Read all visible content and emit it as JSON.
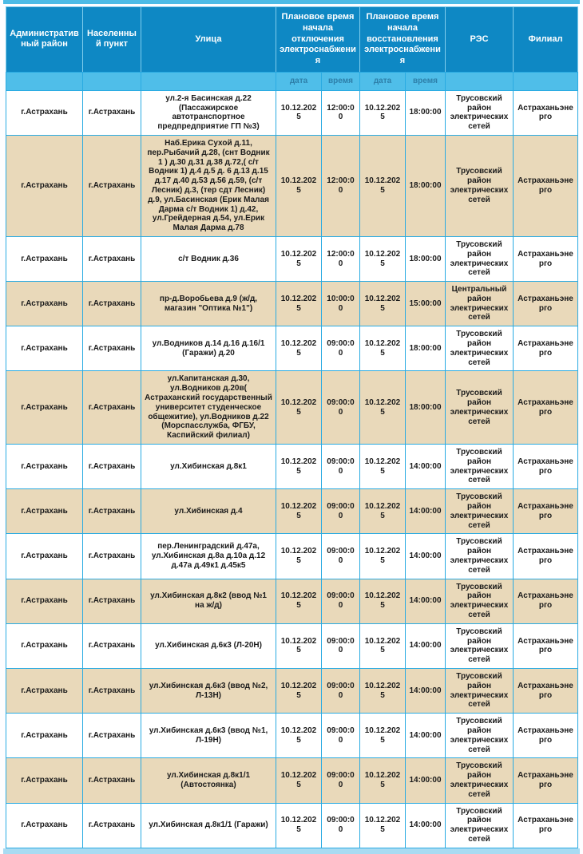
{
  "table": {
    "headers": {
      "admin_district": "Административный район",
      "settlement": "Населенный пункт",
      "street": "Улица",
      "outage_start_group": "Плановое время начала отключения электроснабжения",
      "restore_start_group": "Плановое время начала восстановления электроснабжения",
      "res": "РЭС",
      "branch": "Филиал",
      "sub_date_1": "дата",
      "sub_time_1": "время",
      "sub_date_2": "дата",
      "sub_time_2": "время"
    },
    "rows": [
      {
        "district": "г.Астрахань",
        "settlement": "г.Астрахань",
        "street": "ул.2-я Басинская д.22 (Пассажирское автотранспортное предпредприятие ГП №3)",
        "off_date": "10.12.2025",
        "off_time": "12:00:00",
        "on_date": "10.12.2025",
        "on_time": "18:00:00",
        "res": "Трусовский район электрических сетей",
        "branch": "Астраханьэнерго"
      },
      {
        "district": "г.Астрахань",
        "settlement": "г.Астрахань",
        "street": "Наб.Ерика Сухой д.11, пер.Рыбачий д.28, (снт Водник 1 ) д.30 д.31 д.38 д.72,( с/т Водник 1) д.4 д.5 д. 6 д.13 д.15 д.17 д.40 д.53 д.56 д.59, (с/т Лесник) д.3, (тер сдт Лесник) д.9, ул.Басинская (Ерик Малая Дарма с/т Водник 1) д.42, ул.Грейдерная д.54, ул.Ерик Малая Дарма д.78",
        "off_date": "10.12.2025",
        "off_time": "12:00:00",
        "on_date": "10.12.2025",
        "on_time": "18:00:00",
        "res": "Трусовский район электрических сетей",
        "branch": "Астраханьэнерго"
      },
      {
        "district": "г.Астрахань",
        "settlement": "г.Астрахань",
        "street": "с/т Водник д.36",
        "off_date": "10.12.2025",
        "off_time": "12:00:00",
        "on_date": "10.12.2025",
        "on_time": "18:00:00",
        "res": "Трусовский район электрических сетей",
        "branch": "Астраханьэнерго"
      },
      {
        "district": "г.Астрахань",
        "settlement": "г.Астрахань",
        "street": "пр-д.Воробьева д.9 (ж/д, магазин \"Оптика №1\")",
        "off_date": "10.12.2025",
        "off_time": "10:00:00",
        "on_date": "10.12.2025",
        "on_time": "15:00:00",
        "res": "Центральный район электрических сетей",
        "branch": "Астраханьэнерго"
      },
      {
        "district": "г.Астрахань",
        "settlement": "г.Астрахань",
        "street": "ул.Водников д.14 д.16 д.16/1 (Гаражи) д.20",
        "off_date": "10.12.2025",
        "off_time": "09:00:00",
        "on_date": "10.12.2025",
        "on_time": "18:00:00",
        "res": "Трусовский район электрических сетей",
        "branch": "Астраханьэнерго"
      },
      {
        "district": "г.Астрахань",
        "settlement": "г.Астрахань",
        "street": "ул.Капитанская д.30, ул.Водников д.20в( Астраханский государственный университет студенческое общежитие), ул.Водников д.22 (Морспасслужба, ФГБУ, Каспийский филиал)",
        "off_date": "10.12.2025",
        "off_time": "09:00:00",
        "on_date": "10.12.2025",
        "on_time": "18:00:00",
        "res": "Трусовский район электрических сетей",
        "branch": "Астраханьэнерго"
      },
      {
        "district": "г.Астрахань",
        "settlement": "г.Астрахань",
        "street": "ул.Хибинская д.8к1",
        "off_date": "10.12.2025",
        "off_time": "09:00:00",
        "on_date": "10.12.2025",
        "on_time": "14:00:00",
        "res": "Трусовский район электрических сетей",
        "branch": "Астраханьэнерго"
      },
      {
        "district": "г.Астрахань",
        "settlement": "г.Астрахань",
        "street": "ул.Хибинская д.4",
        "off_date": "10.12.2025",
        "off_time": "09:00:00",
        "on_date": "10.12.2025",
        "on_time": "14:00:00",
        "res": "Трусовский район электрических сетей",
        "branch": "Астраханьэнерго"
      },
      {
        "district": "г.Астрахань",
        "settlement": "г.Астрахань",
        "street": "пер.Ленинградский д.47а, ул.Хибинская д.8а д.10а д.12 д.47а д.49к1 д.45к5",
        "off_date": "10.12.2025",
        "off_time": "09:00:00",
        "on_date": "10.12.2025",
        "on_time": "14:00:00",
        "res": "Трусовский район электрических сетей",
        "branch": "Астраханьэнерго"
      },
      {
        "district": "г.Астрахань",
        "settlement": "г.Астрахань",
        "street": "ул.Хибинская д.8к2 (ввод №1 на ж/д)",
        "off_date": "10.12.2025",
        "off_time": "09:00:00",
        "on_date": "10.12.2025",
        "on_time": "14:00:00",
        "res": "Трусовский район электрических сетей",
        "branch": "Астраханьэнерго"
      },
      {
        "district": "г.Астрахань",
        "settlement": "г.Астрахань",
        "street": "ул.Хибинская д.6к3 (Л-20Н)",
        "off_date": "10.12.2025",
        "off_time": "09:00:00",
        "on_date": "10.12.2025",
        "on_time": "14:00:00",
        "res": "Трусовский район электрических сетей",
        "branch": "Астраханьэнерго"
      },
      {
        "district": "г.Астрахань",
        "settlement": "г.Астрахань",
        "street": "ул.Хибинская д.6к3 (ввод №2, Л-13Н)",
        "off_date": "10.12.2025",
        "off_time": "09:00:00",
        "on_date": "10.12.2025",
        "on_time": "14:00:00",
        "res": "Трусовский район электрических сетей",
        "branch": "Астраханьэнерго"
      },
      {
        "district": "г.Астрахань",
        "settlement": "г.Астрахань",
        "street": "ул.Хибинская д.6к3 (ввод №1, Л-19Н)",
        "off_date": "10.12.2025",
        "off_time": "09:00:00",
        "on_date": "10.12.2025",
        "on_time": "14:00:00",
        "res": "Трусовский район электрических сетей",
        "branch": "Астраханьэнерго"
      },
      {
        "district": "г.Астрахань",
        "settlement": "г.Астрахань",
        "street": "ул.Хибинская д.8к1/1 (Автостоянка)",
        "off_date": "10.12.2025",
        "off_time": "09:00:00",
        "on_date": "10.12.2025",
        "on_time": "14:00:00",
        "res": "Трусовский район электрических сетей",
        "branch": "Астраханьэнерго"
      },
      {
        "district": "г.Астрахань",
        "settlement": "г.Астрахань",
        "street": "ул.Хибинская д.8к1/1 (Гаражи)",
        "off_date": "10.12.2025",
        "off_time": "09:00:00",
        "on_date": "10.12.2025",
        "on_time": "14:00:00",
        "res": "Трусовский район электрических сетей",
        "branch": "Астраханьэнерго"
      }
    ]
  },
  "colors": {
    "header_bg": "#0e88c4",
    "subheader_bg": "#4fbee9",
    "grid_border": "#2aabe2",
    "row_alt_bg": "#e9d9ba",
    "top_strip": "#4cbbe6",
    "bottom_strip": "#a9dbf2"
  }
}
